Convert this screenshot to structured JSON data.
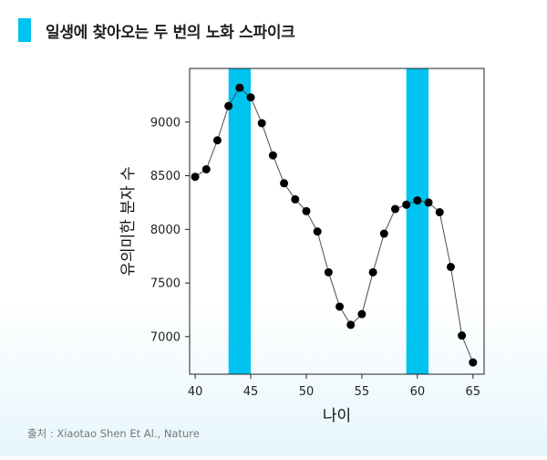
{
  "title": "일생에 찾아오는 두 번의 노화 스파이크",
  "source": "출처 : Xiaotao Shen Et Al., Nature",
  "colors": {
    "accent": "#00c3f0",
    "marker": "#000000",
    "line": "#4d4d4d"
  },
  "chart_data": {
    "type": "line",
    "xlabel": "나이",
    "ylabel": "유의미한 분자 수",
    "xlim": [
      39.5,
      66
    ],
    "ylim": [
      6650,
      9500
    ],
    "xticks": [
      40,
      45,
      50,
      55,
      60,
      65
    ],
    "yticks": [
      7000,
      7500,
      8000,
      8500,
      9000
    ],
    "highlight_bands": [
      [
        43,
        45
      ],
      [
        59,
        61
      ]
    ],
    "grid": false,
    "series": [
      {
        "x": [
          40,
          41,
          42,
          43,
          44,
          45,
          46,
          47,
          48,
          49,
          50,
          51,
          52,
          53,
          54,
          55,
          56,
          57,
          58,
          59,
          60,
          61,
          62,
          63,
          64,
          65
        ],
        "y": [
          8490,
          8560,
          8830,
          9150,
          9320,
          9230,
          8990,
          8690,
          8430,
          8280,
          8170,
          7980,
          7600,
          7280,
          7110,
          7210,
          7600,
          7960,
          8190,
          8230,
          8270,
          8250,
          8160,
          7650,
          7010,
          6760
        ]
      }
    ]
  }
}
